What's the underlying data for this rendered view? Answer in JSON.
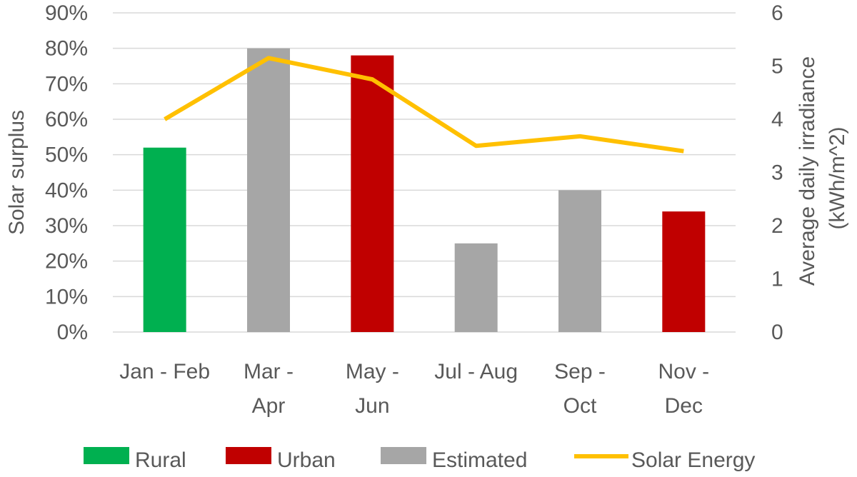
{
  "chart_data": {
    "type": "bar",
    "categories": [
      [
        "Jan - Feb"
      ],
      [
        "Mar -",
        "Apr"
      ],
      [
        "May -",
        "Jun"
      ],
      [
        "Jul - Aug"
      ],
      [
        "Sep -",
        "Oct"
      ],
      [
        "Nov -",
        "Dec"
      ]
    ],
    "bars": [
      {
        "value": 52,
        "group": "Rural"
      },
      {
        "value": 80,
        "group": "Estimated"
      },
      {
        "value": 78,
        "group": "Urban"
      },
      {
        "value": 25,
        "group": "Estimated"
      },
      {
        "value": 40,
        "group": "Estimated"
      },
      {
        "value": 34,
        "group": "Urban"
      }
    ],
    "line_series": {
      "name": "Solar Energy",
      "values": [
        4.0,
        5.15,
        4.75,
        3.5,
        3.68,
        3.4
      ],
      "axis": "right"
    },
    "y_left": {
      "label": "Solar surplus",
      "min": 0,
      "max": 90,
      "step": 10,
      "ticks": [
        "0%",
        "10%",
        "20%",
        "30%",
        "40%",
        "50%",
        "60%",
        "70%",
        "80%",
        "90%"
      ]
    },
    "y_right": {
      "label_lines": [
        "Average daily irradiance",
        "(kWh/m^2)"
      ],
      "min": 0,
      "max": 6,
      "step": 1,
      "ticks": [
        "0",
        "1",
        "2",
        "3",
        "4",
        "5",
        "6"
      ]
    },
    "legend": {
      "position": "bottom",
      "items": [
        {
          "name": "Rural",
          "kind": "box"
        },
        {
          "name": "Urban",
          "kind": "box"
        },
        {
          "name": "Estimated",
          "kind": "box"
        },
        {
          "name": "Solar Energy",
          "kind": "line"
        }
      ]
    },
    "colors": {
      "Rural": "#00b050",
      "Urban": "#c00000",
      "Estimated": "#a6a6a6",
      "Solar Energy": "#ffc000",
      "grid": "#d9d9d9",
      "text": "#595959"
    },
    "grid": true
  }
}
